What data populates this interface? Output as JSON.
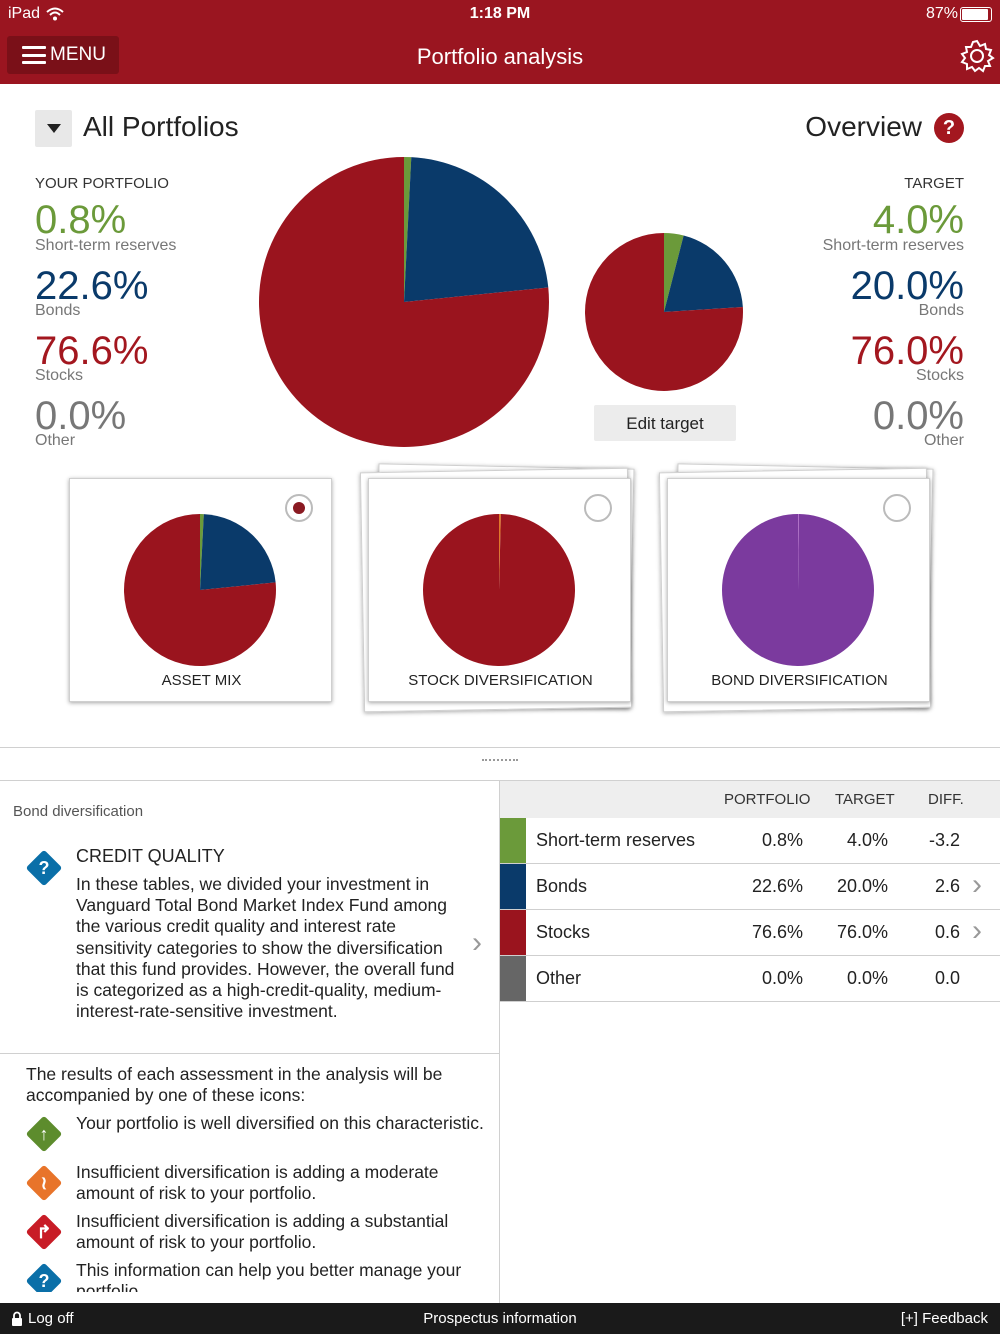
{
  "status": {
    "device": "iPad",
    "time": "1:18 PM",
    "battery": "87%"
  },
  "nav": {
    "menu_label": "MENU",
    "title": "Portfolio analysis",
    "settings_icon": "gear-icon"
  },
  "header": {
    "selector": "All Portfolios",
    "view": "Overview",
    "help": "?"
  },
  "portfolio": {
    "heading": "YOUR PORTFOLIO",
    "items": [
      {
        "value": "0.8%",
        "label": "Short-term reserves"
      },
      {
        "value": "22.6%",
        "label": "Bonds"
      },
      {
        "value": "76.6%",
        "label": "Stocks"
      },
      {
        "value": "0.0%",
        "label": "Other"
      }
    ]
  },
  "target": {
    "heading": "TARGET",
    "items": [
      {
        "value": "4.0%",
        "label": "Short-term reserves"
      },
      {
        "value": "20.0%",
        "label": "Bonds"
      },
      {
        "value": "76.0%",
        "label": "Stocks"
      },
      {
        "value": "0.0%",
        "label": "Other"
      }
    ],
    "edit_label": "Edit target"
  },
  "colors": {
    "short_term": "#6b9a3a",
    "bonds": "#0a3a6a",
    "stocks": "#9a141e",
    "other": "#666666",
    "bond_div": "#7b3a9e",
    "brand": "#9a1520"
  },
  "chart_data": [
    {
      "type": "pie",
      "categories": [
        "Short-term reserves",
        "Bonds",
        "Stocks",
        "Other"
      ],
      "values": [
        0.8,
        22.6,
        76.6,
        0.0
      ]
    },
    {
      "type": "pie",
      "categories": [
        "Short-term reserves",
        "Bonds",
        "Stocks",
        "Other"
      ],
      "values": [
        4.0,
        20.0,
        76.0,
        0.0
      ]
    }
  ],
  "cards": [
    {
      "label": "ASSET MIX",
      "selected": true
    },
    {
      "label": "STOCK DIVERSIFICATION",
      "selected": false
    },
    {
      "label": "BOND DIVERSIFICATION",
      "selected": false
    }
  ],
  "detail": {
    "section": "Bond diversification",
    "title": "CREDIT QUALITY",
    "body": "In these tables, we divided your investment in Vanguard Total Bond Market Index Fund among the various credit quality and interest rate sensitivity categories to show the diversification that this fund provides. However, the overall fund is categorized as a high-credit-quality, medium-interest-rate-sensitive investment.",
    "results_intro": "The results of each assessment in the analysis will be accompanied by one of these icons:",
    "legend": [
      "Your portfolio is well diversified on this characteristic.",
      "Insufficient diversification is adding a moderate amount of risk to your portfolio.",
      "Insufficient diversification is adding a substantial amount of risk to your portfolio.",
      "This information can help you better manage your portfolio."
    ]
  },
  "table": {
    "headers": [
      "PORTFOLIO",
      "TARGET",
      "DIFF."
    ],
    "rows": [
      {
        "name": "Short-term reserves",
        "portfolio": "0.8%",
        "target": "4.0%",
        "diff": "-3.2"
      },
      {
        "name": "Bonds",
        "portfolio": "22.6%",
        "target": "20.0%",
        "diff": "2.6"
      },
      {
        "name": "Stocks",
        "portfolio": "76.6%",
        "target": "76.0%",
        "diff": "0.6"
      },
      {
        "name": "Other",
        "portfolio": "0.0%",
        "target": "0.0%",
        "diff": "0.0"
      }
    ]
  },
  "footer": {
    "logoff": "Log off",
    "prospectus": "Prospectus information",
    "feedback": "[+] Feedback"
  }
}
